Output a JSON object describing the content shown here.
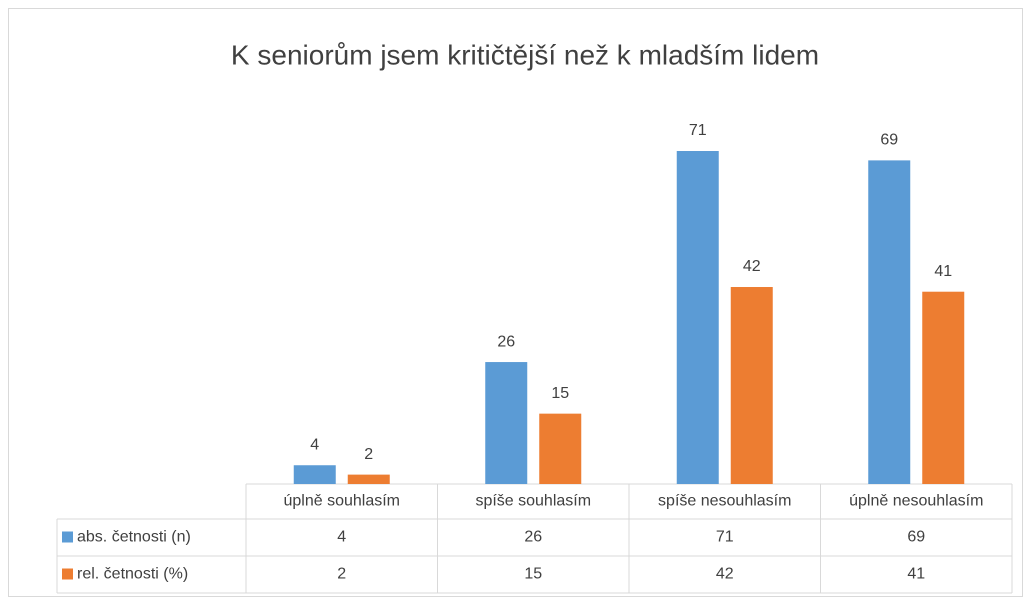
{
  "chart_data": {
    "type": "bar",
    "title": "K seniorům jsem kritičtější než k mladším lidem",
    "categories": [
      "úplně souhlasím",
      "spíše souhlasím",
      "spíše nesouhlasím",
      "úplně nesouhlasím"
    ],
    "series": [
      {
        "name": "abs. četnosti (n)",
        "color": "#5b9bd5",
        "values": [
          4,
          26,
          71,
          69
        ]
      },
      {
        "name": "rel. četnosti (%)",
        "color": "#ed7d31",
        "values": [
          2,
          15,
          42,
          41
        ]
      }
    ]
  }
}
